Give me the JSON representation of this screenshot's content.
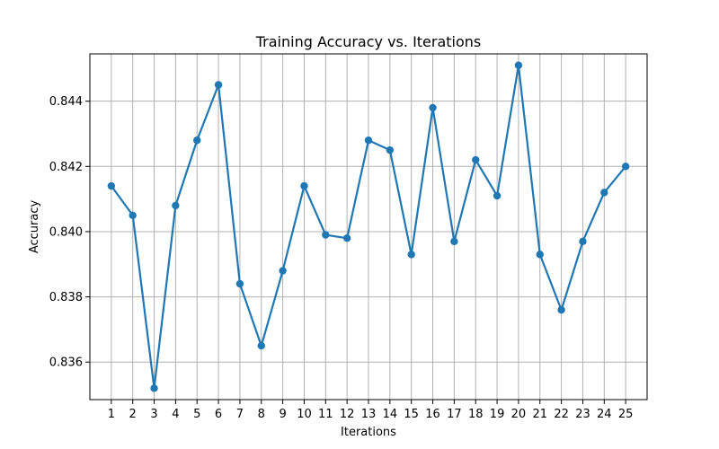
{
  "chart_data": {
    "type": "line",
    "title": "Training Accuracy vs. Iterations",
    "xlabel": "Iterations",
    "ylabel": "Accuracy",
    "x": [
      1,
      2,
      3,
      4,
      5,
      6,
      7,
      8,
      9,
      10,
      11,
      12,
      13,
      14,
      15,
      16,
      17,
      18,
      19,
      20,
      21,
      22,
      23,
      24,
      25
    ],
    "series": [
      {
        "values": [
          0.8414,
          0.8405,
          0.8352,
          0.8408,
          0.8428,
          0.8445,
          0.8384,
          0.8365,
          0.8388,
          0.8414,
          0.8399,
          0.8398,
          0.8428,
          0.8425,
          0.8393,
          0.8438,
          0.8397,
          0.8422,
          0.8411,
          0.8451,
          0.8393,
          0.8376,
          0.8397,
          0.8412,
          0.842
        ],
        "color": "#1f77b4",
        "marker": "circle"
      }
    ],
    "xlim": [
      0,
      26
    ],
    "ylim": [
      0.83485,
      0.84545
    ],
    "yticks": [
      0.836,
      0.838,
      0.84,
      0.842,
      0.844
    ],
    "ytick_labels": [
      "0.836",
      "0.838",
      "0.840",
      "0.842",
      "0.844"
    ],
    "grid": true
  }
}
